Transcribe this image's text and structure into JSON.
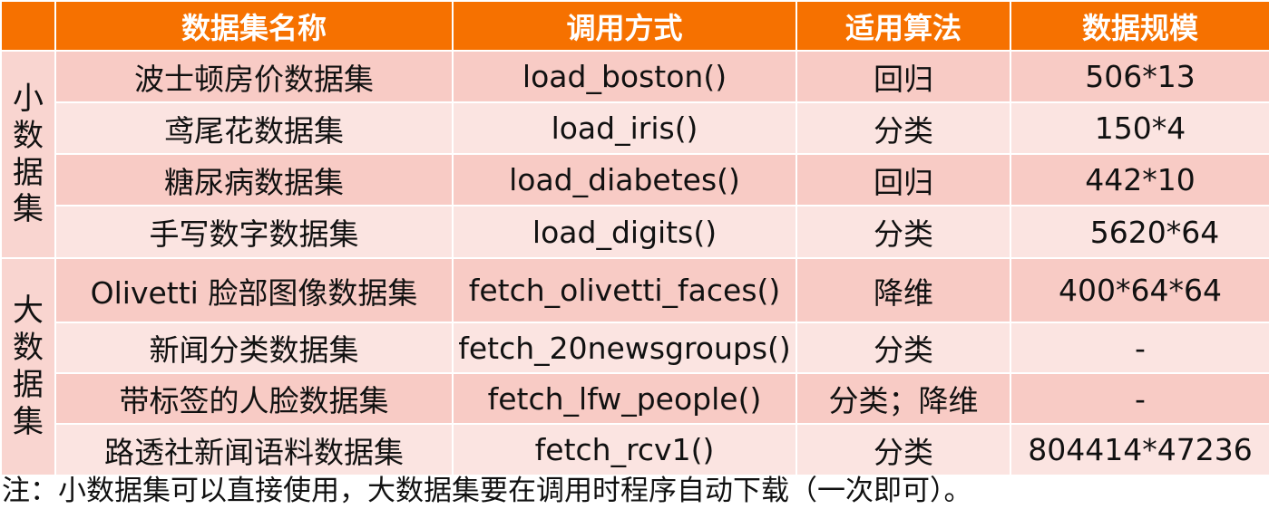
{
  "table": {
    "header": {
      "name": "数据集名称",
      "method": "调用方式",
      "algorithm": "适用算法",
      "scale": "数据规模"
    },
    "groups": [
      {
        "label": "小数据集"
      },
      {
        "label": "大数据集"
      }
    ],
    "rows": [
      {
        "name": "波士顿房价数据集",
        "method": "load_boston()",
        "algorithm": "回归",
        "scale": "506*13"
      },
      {
        "name": "鸢尾花数据集",
        "method": "load_iris()",
        "algorithm": "分类",
        "scale": "150*4"
      },
      {
        "name": "糖尿病数据集",
        "method": "load_diabetes()",
        "algorithm": "回归",
        "scale": "442*10"
      },
      {
        "name": "手写数字数据集",
        "method": "load_digits()",
        "algorithm": "分类",
        "scale": "5620*64"
      },
      {
        "name": "Olivetti 脸部图像数据集",
        "method": "fetch_olivetti_faces()",
        "algorithm": "降维",
        "scale": "400*64*64"
      },
      {
        "name": "新闻分类数据集",
        "method": "fetch_20newsgroups()",
        "algorithm": "分类",
        "scale": "-"
      },
      {
        "name": "带标签的人脸数据集",
        "method": "fetch_lfw_people()",
        "algorithm": "分类；降维",
        "scale": "-"
      },
      {
        "name": "路透社新闻语料数据集",
        "method": "fetch_rcv1()",
        "algorithm": "分类",
        "scale": "804414*47236"
      }
    ]
  },
  "note": "注：小数据集可以直接使用，大数据集要在调用时程序自动下载（一次即可）。",
  "colors": {
    "header_bg": "#f67100",
    "row_dark": "#f8cbc5",
    "row_light": "#fbe4e1"
  }
}
